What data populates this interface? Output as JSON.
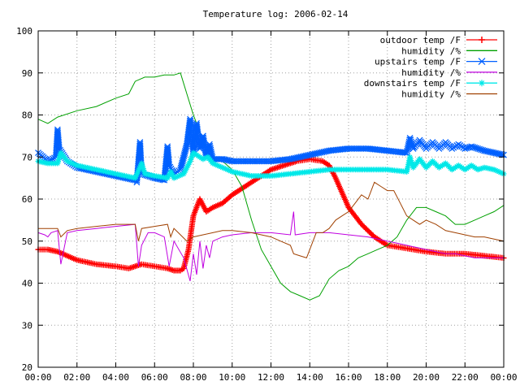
{
  "chart_data": {
    "type": "line",
    "title": "Temperature log: 2006-02-14",
    "xlabel": "",
    "ylabel": "",
    "ylim": [
      20,
      100
    ],
    "yticks": [
      20,
      30,
      40,
      50,
      60,
      70,
      80,
      90,
      100
    ],
    "xlim": [
      "00:00",
      "24:00"
    ],
    "xtick_labels": [
      "00:00",
      "02:00",
      "04:00",
      "06:00",
      "08:00",
      "10:00",
      "12:00",
      "14:00",
      "16:00",
      "18:00",
      "20:00",
      "22:00",
      "00:00"
    ],
    "grid": true,
    "legend_position": "top-right",
    "series": [
      {
        "name": "outdoor temp /F",
        "color": "#ff0000",
        "marker": "plus",
        "x": [
          "00:00",
          "00:30",
          "01:00",
          "02:00",
          "03:00",
          "04:00",
          "04:40",
          "05:00",
          "05:20",
          "06:00",
          "06:40",
          "07:00",
          "07:20",
          "07:30",
          "07:45",
          "08:00",
          "08:20",
          "08:40",
          "09:00",
          "09:30",
          "10:00",
          "10:40",
          "11:20",
          "12:00",
          "12:40",
          "13:20",
          "14:00",
          "14:40",
          "15:00",
          "15:20",
          "16:00",
          "16:40",
          "17:20",
          "18:00",
          "18:40",
          "19:20",
          "20:00",
          "21:00",
          "22:00",
          "23:00",
          "24:00"
        ],
        "y": [
          48,
          48,
          47.5,
          45.5,
          44.5,
          44,
          43.5,
          44,
          44.5,
          44,
          43.5,
          43,
          43,
          43.5,
          48,
          56,
          60,
          57,
          58,
          59,
          61,
          63,
          65,
          67,
          68,
          69,
          69.5,
          69,
          68,
          65,
          58,
          54,
          51,
          49,
          48.5,
          48,
          47.5,
          47,
          47,
          46.5,
          46
        ]
      },
      {
        "name": "humidity /%",
        "color": "#00a000",
        "marker": "none",
        "x": [
          "00:00",
          "00:30",
          "01:00",
          "02:00",
          "03:00",
          "04:00",
          "04:40",
          "05:00",
          "05:30",
          "06:00",
          "06:30",
          "07:00",
          "07:20",
          "07:40",
          "08:00",
          "08:30",
          "09:00",
          "09:30",
          "10:00",
          "10:30",
          "11:00",
          "11:30",
          "12:00",
          "12:30",
          "13:00",
          "13:30",
          "14:00",
          "14:30",
          "15:00",
          "15:30",
          "16:00",
          "16:30",
          "17:00",
          "17:30",
          "18:00",
          "18:30",
          "19:00",
          "19:30",
          "20:00",
          "20:30",
          "21:00",
          "21:30",
          "22:00",
          "22:30",
          "23:00",
          "23:30",
          "24:00"
        ],
        "y": [
          79,
          78,
          79.5,
          81,
          82,
          84,
          85,
          88,
          89,
          89,
          89.5,
          89.5,
          90,
          85,
          80,
          74,
          69,
          69,
          67,
          63,
          55,
          48,
          44,
          40,
          38,
          37,
          36,
          37,
          41,
          43,
          44,
          46,
          47,
          48,
          49,
          51,
          55,
          58,
          58,
          57,
          56,
          54,
          54,
          55,
          56,
          57,
          58.5
        ]
      },
      {
        "name": "upstairs temp /F",
        "color": "#0060ff",
        "marker": "x",
        "x": [
          "00:00",
          "00:30",
          "00:55",
          "01:00",
          "01:05",
          "01:30",
          "02:00",
          "03:00",
          "04:00",
          "05:00",
          "05:05",
          "05:15",
          "05:20",
          "06:00",
          "06:30",
          "06:40",
          "06:45",
          "07:00",
          "07:20",
          "07:40",
          "07:50",
          "08:00",
          "08:10",
          "08:20",
          "08:30",
          "08:40",
          "08:50",
          "09:00",
          "09:15",
          "09:30",
          "10:00",
          "11:00",
          "12:00",
          "13:00",
          "14:00",
          "15:00",
          "16:00",
          "17:00",
          "18:00",
          "19:00",
          "19:10",
          "19:20",
          "19:40",
          "20:00",
          "20:20",
          "20:40",
          "21:00",
          "21:20",
          "21:40",
          "22:00",
          "22:20",
          "22:40",
          "23:00",
          "23:30",
          "24:00"
        ],
        "y": [
          71,
          69,
          70,
          76.5,
          72,
          69,
          67.5,
          66.5,
          65.5,
          64.5,
          64,
          73.5,
          66,
          65,
          64.5,
          72.5,
          68,
          66,
          67,
          73,
          79,
          71,
          78,
          72,
          75,
          70,
          73,
          69.5,
          69.5,
          69.5,
          69,
          69,
          69,
          69.5,
          70.5,
          71.5,
          72,
          72,
          71.5,
          71,
          74.5,
          72,
          74,
          72,
          73.5,
          72,
          73.5,
          72,
          73,
          72,
          72.5,
          72,
          71.5,
          71,
          70.5
        ]
      },
      {
        "name": "humidity /%",
        "color": "#c000e0",
        "marker": "none",
        "x": [
          "00:00",
          "00:20",
          "00:30",
          "00:40",
          "01:00",
          "01:10",
          "01:30",
          "02:00",
          "03:00",
          "04:00",
          "05:00",
          "05:10",
          "05:20",
          "05:40",
          "06:00",
          "06:30",
          "06:45",
          "07:00",
          "07:30",
          "07:50",
          "08:00",
          "08:10",
          "08:20",
          "08:30",
          "08:40",
          "08:50",
          "09:00",
          "09:30",
          "10:00",
          "11:00",
          "12:00",
          "13:00",
          "13:10",
          "13:15",
          "14:00",
          "15:00",
          "16:00",
          "17:00",
          "18:00",
          "18:30",
          "19:00",
          "19:30",
          "20:00",
          "20:30",
          "21:00",
          "21:30",
          "22:00",
          "22:30",
          "23:00",
          "23:30",
          "24:00"
        ],
        "y": [
          52,
          51.5,
          51,
          52,
          52.5,
          44.5,
          52,
          52.5,
          53,
          53.5,
          54,
          44,
          49,
          52,
          52,
          51,
          44,
          50,
          46,
          40.5,
          47,
          42,
          50,
          43.5,
          49,
          46,
          50,
          51,
          51.5,
          52,
          52,
          51.5,
          57,
          51.5,
          52,
          52,
          51.5,
          51,
          50,
          49.5,
          49,
          48.5,
          48,
          47.5,
          47,
          47,
          46.5,
          46,
          46,
          46,
          46
        ]
      },
      {
        "name": "downstairs temp /F",
        "color": "#00e8e8",
        "marker": "star",
        "x": [
          "00:00",
          "00:30",
          "01:00",
          "01:10",
          "01:30",
          "02:00",
          "03:00",
          "04:00",
          "05:00",
          "05:20",
          "05:30",
          "06:00",
          "06:40",
          "06:50",
          "07:00",
          "07:30",
          "07:50",
          "08:00",
          "08:30",
          "08:45",
          "09:00",
          "09:30",
          "10:00",
          "11:00",
          "12:00",
          "13:00",
          "14:00",
          "15:00",
          "16:00",
          "17:00",
          "18:00",
          "19:00",
          "19:10",
          "19:20",
          "19:40",
          "20:00",
          "20:20",
          "20:40",
          "21:00",
          "21:20",
          "21:40",
          "22:00",
          "22:20",
          "22:40",
          "23:00",
          "23:30",
          "24:00"
        ],
        "y": [
          69,
          68.5,
          68.5,
          71,
          69,
          68,
          67,
          66,
          65,
          68.5,
          66,
          65.5,
          65,
          66.5,
          65,
          66,
          69,
          71,
          69.5,
          70,
          68.5,
          67.5,
          66.5,
          65.5,
          65.5,
          66,
          66.5,
          67,
          67,
          67,
          67,
          66.5,
          70,
          67.5,
          69.5,
          67.5,
          69,
          67.5,
          68.5,
          67,
          68,
          67,
          68,
          67,
          67.5,
          67,
          66
        ]
      },
      {
        "name": "humidity /%",
        "color": "#a04000",
        "marker": "none",
        "x": [
          "00:00",
          "00:30",
          "01:00",
          "01:10",
          "01:30",
          "02:00",
          "03:00",
          "04:00",
          "05:00",
          "05:10",
          "05:20",
          "06:00",
          "06:40",
          "06:50",
          "07:00",
          "07:20",
          "07:40",
          "08:00",
          "08:30",
          "09:00",
          "09:30",
          "10:00",
          "11:00",
          "12:00",
          "12:30",
          "13:00",
          "13:10",
          "13:30",
          "13:50",
          "14:00",
          "14:20",
          "14:40",
          "15:00",
          "15:20",
          "15:40",
          "16:00",
          "16:20",
          "16:40",
          "17:00",
          "17:20",
          "17:40",
          "18:00",
          "18:20",
          "18:40",
          "19:00",
          "19:20",
          "19:40",
          "20:00",
          "20:30",
          "21:00",
          "21:30",
          "22:00",
          "22:30",
          "23:00",
          "23:30",
          "24:00"
        ],
        "y": [
          53,
          53,
          53,
          51,
          52.5,
          53,
          53.5,
          54,
          54,
          50,
          53,
          53.5,
          54,
          51,
          53,
          51.5,
          50,
          51,
          51.5,
          52,
          52.5,
          52.5,
          52,
          51,
          50,
          49,
          47,
          46.5,
          46,
          48,
          52,
          52,
          53,
          55,
          56,
          57,
          59,
          61,
          60,
          64,
          63,
          62,
          62,
          59,
          56,
          55,
          54,
          55,
          54,
          52.5,
          52,
          51.5,
          51,
          51,
          50.5,
          50
        ]
      }
    ]
  }
}
